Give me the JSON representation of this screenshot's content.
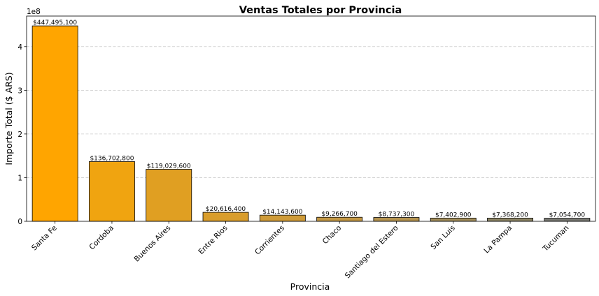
{
  "chart_data": {
    "type": "bar",
    "title": "Ventas Totales por Provincia",
    "xlabel": "Provincia",
    "ylabel": "Importe Total ($ ARS)",
    "y_offset_label": "1e8",
    "ylim": [
      0,
      470000000
    ],
    "y_ticks": [
      {
        "value": 0,
        "label": "0"
      },
      {
        "value": 100000000,
        "label": "1"
      },
      {
        "value": 200000000,
        "label": "2"
      },
      {
        "value": 300000000,
        "label": "3"
      },
      {
        "value": 400000000,
        "label": "4"
      }
    ],
    "grid": "y-dashed",
    "categories": [
      "Santa Fe",
      "Cordoba",
      "Buenos Aires",
      "Entre Rios",
      "Corrientes",
      "Chaco",
      "Santiago del Estero",
      "San Luis",
      "La Pampa",
      "Tucuman"
    ],
    "values": [
      447495100,
      136702800,
      119029600,
      20616400,
      14143600,
      9266700,
      8737300,
      7402900,
      7368200,
      7054700
    ],
    "data_labels": [
      "$447,495,100",
      "$136,702,800",
      "$119,029,600",
      "$20,616,400",
      "$14,143,600",
      "$9,266,700",
      "$8,737,300",
      "$7,402,900",
      "$7,368,200",
      "$7,054,700"
    ],
    "colors": [
      "#ffa500",
      "#f0a410",
      "#e09f22",
      "#d99d2c",
      "#cf9b38",
      "#c29744",
      "#b4934f",
      "#a38e5b",
      "#8e8666",
      "#7a7a74"
    ],
    "bar_edge_color": "#000000",
    "grid_color": "#cccccc"
  }
}
